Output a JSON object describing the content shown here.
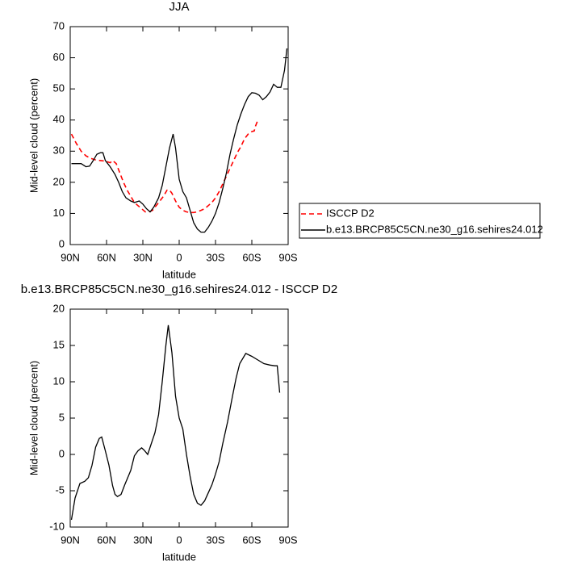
{
  "chart_data": [
    {
      "type": "line",
      "title": "JJA",
      "xlabel": "latitude",
      "ylabel": "Mid-level cloud (percent)",
      "xlim": [
        90,
        -90
      ],
      "xticks": [
        {
          "value": 90,
          "label": "90N"
        },
        {
          "value": 60,
          "label": "60N"
        },
        {
          "value": 30,
          "label": "30N"
        },
        0,
        {
          "value": -30,
          "label": "30S"
        },
        {
          "value": -60,
          "label": "60S"
        },
        {
          "value": -90,
          "label": "90S"
        }
      ],
      "ylim": [
        0,
        70
      ],
      "yticks": [
        0,
        10,
        20,
        30,
        40,
        50,
        60,
        70
      ],
      "legend": "right",
      "series": [
        {
          "name": "ISCCP D2",
          "color": "#ff0000",
          "dash": "dashed",
          "x": [
            89,
            85,
            81,
            77,
            73,
            69,
            65,
            61,
            57,
            55,
            52,
            49,
            46,
            43,
            40,
            37,
            34,
            31,
            28,
            25,
            22,
            19,
            16,
            13,
            10,
            8,
            6,
            3,
            0,
            -3,
            -6,
            -9,
            -12,
            -15,
            -18,
            -21,
            -24,
            -27,
            -30,
            -33,
            -36,
            -39,
            -42,
            -45,
            -48,
            -51,
            -54,
            -57,
            -60,
            -62,
            -63,
            -65
          ],
          "values": [
            35.5,
            32.5,
            30,
            28.5,
            27.7,
            27.2,
            27,
            26.8,
            26.3,
            27,
            26,
            23,
            20,
            17.5,
            15.5,
            13.5,
            12.5,
            11.5,
            10.5,
            10.5,
            11,
            12.5,
            14,
            15.5,
            17.5,
            17.5,
            16.5,
            14,
            12,
            11,
            10.5,
            10.3,
            10.3,
            10.5,
            11,
            11.5,
            12.5,
            13.5,
            15,
            17,
            19.5,
            22,
            24.5,
            27,
            29.5,
            31.5,
            34,
            35.5,
            36.3,
            36.5,
            38,
            40
          ]
        },
        {
          "name": "b.e13.BRCP85C5CN.ne30_g16.sehires24.012",
          "color": "#000000",
          "dash": "solid",
          "x": [
            89,
            85,
            81,
            77,
            74,
            71,
            68,
            65,
            63,
            61,
            57,
            53,
            50,
            47,
            44,
            40,
            37,
            33,
            30,
            27,
            24,
            21,
            17,
            14,
            11,
            8,
            5,
            3,
            0,
            -3,
            -6,
            -9,
            -12,
            -15,
            -18,
            -21,
            -24,
            -27,
            -30,
            -33,
            -36,
            -39,
            -42,
            -45,
            -48,
            -51,
            -54,
            -57,
            -60,
            -63,
            -66,
            -69,
            -72,
            -75,
            -78,
            -81,
            -84,
            -87,
            -89
          ],
          "values": [
            26,
            26,
            26,
            25,
            25.2,
            27,
            29,
            29.5,
            29.5,
            27,
            25,
            22.5,
            20,
            17,
            15,
            14,
            13.5,
            14,
            13,
            11.5,
            10.5,
            12,
            15,
            19,
            25,
            31,
            35.5,
            31,
            21,
            17,
            15,
            11,
            7,
            5,
            4,
            4,
            5.5,
            7.5,
            10,
            13.5,
            18,
            23,
            29,
            34,
            38.5,
            42,
            45,
            47.5,
            48.8,
            48.6,
            48,
            46.5,
            47.5,
            49,
            51.5,
            50.5,
            50.5,
            56,
            63
          ]
        }
      ]
    },
    {
      "type": "line",
      "title": "b.e13.BRCP85C5CN.ne30_g16.sehires24.012 - ISCCP D2",
      "xlabel": "latitude",
      "ylabel": "Mid-level cloud (percent)",
      "xlim": [
        90,
        -90
      ],
      "xticks": [
        {
          "value": 90,
          "label": "90N"
        },
        {
          "value": 60,
          "label": "60N"
        },
        {
          "value": 30,
          "label": "30N"
        },
        0,
        {
          "value": -30,
          "label": "30S"
        },
        {
          "value": -60,
          "label": "60S"
        },
        {
          "value": -90,
          "label": "90S"
        }
      ],
      "ylim": [
        -10,
        20
      ],
      "yticks": [
        -10,
        -5,
        0,
        5,
        10,
        15,
        20
      ],
      "series": [
        {
          "color": "#000000",
          "dash": "solid",
          "x": [
            89,
            86,
            82,
            78,
            75,
            72,
            69,
            66,
            64,
            61,
            58,
            55,
            53,
            51,
            48,
            45,
            42,
            40,
            37,
            34,
            31,
            29,
            26,
            23,
            20,
            17,
            14,
            11,
            9,
            6,
            3,
            0,
            -3,
            -6,
            -9,
            -12,
            -15,
            -18,
            -21,
            -24,
            -27,
            -30,
            -33,
            -36,
            -40,
            -44,
            -47,
            -50,
            -55,
            -60,
            -65,
            -70,
            -75,
            -79,
            -81,
            -83
          ],
          "values": [
            -9,
            -6,
            -4,
            -3.7,
            -3.2,
            -1.5,
            1,
            2.2,
            2.4,
            0.5,
            -1.5,
            -4.3,
            -5.5,
            -5.8,
            -5.5,
            -4.2,
            -3,
            -2.2,
            -0.2,
            0.5,
            0.9,
            0.6,
            0,
            1.5,
            3,
            5.5,
            10,
            15,
            17.8,
            14,
            8,
            5,
            3.5,
            0,
            -3,
            -5.5,
            -6.7,
            -7,
            -6.4,
            -5.3,
            -4.2,
            -2.7,
            -1,
            1.5,
            4.5,
            8,
            10.5,
            12.5,
            13.9,
            13.5,
            13,
            12.5,
            12.3,
            12.2,
            12.2,
            8.5
          ]
        }
      ]
    }
  ]
}
